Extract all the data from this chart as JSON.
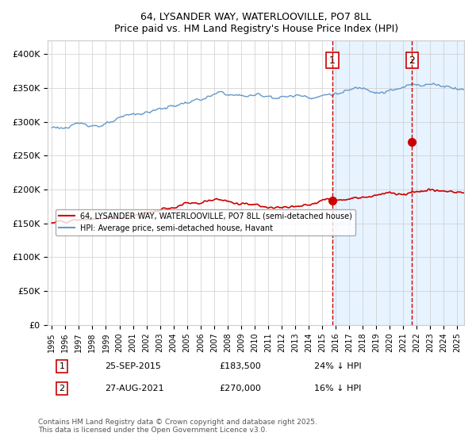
{
  "title": "64, LYSANDER WAY, WATERLOOVILLE, PO7 8LL",
  "subtitle": "Price paid vs. HM Land Registry's House Price Index (HPI)",
  "legend_line1": "64, LYSANDER WAY, WATERLOOVILLE, PO7 8LL (semi-detached house)",
  "legend_line2": "HPI: Average price, semi-detached house, Havant",
  "annotation1_date": "25-SEP-2015",
  "annotation1_price": "£183,500",
  "annotation1_hpi": "24% ↓ HPI",
  "annotation2_date": "27-AUG-2021",
  "annotation2_price": "£270,000",
  "annotation2_hpi": "16% ↓ HPI",
  "copyright_text": "Contains HM Land Registry data © Crown copyright and database right 2025.\nThis data is licensed under the Open Government Licence v3.0.",
  "red_color": "#cc0000",
  "blue_color": "#6699cc",
  "bg_shade_color": "#ddeeff",
  "marker1_x": 2015.75,
  "marker1_y": 183500,
  "marker2_x": 2021.65,
  "marker2_y": 270000,
  "vline1_x": 2015.75,
  "vline2_x": 2021.65,
  "ylim": [
    0,
    420000
  ],
  "xlim_start": 1995,
  "xlim_end": 2025.5,
  "shade_start": 2015.75,
  "shade_end": 2025.5
}
